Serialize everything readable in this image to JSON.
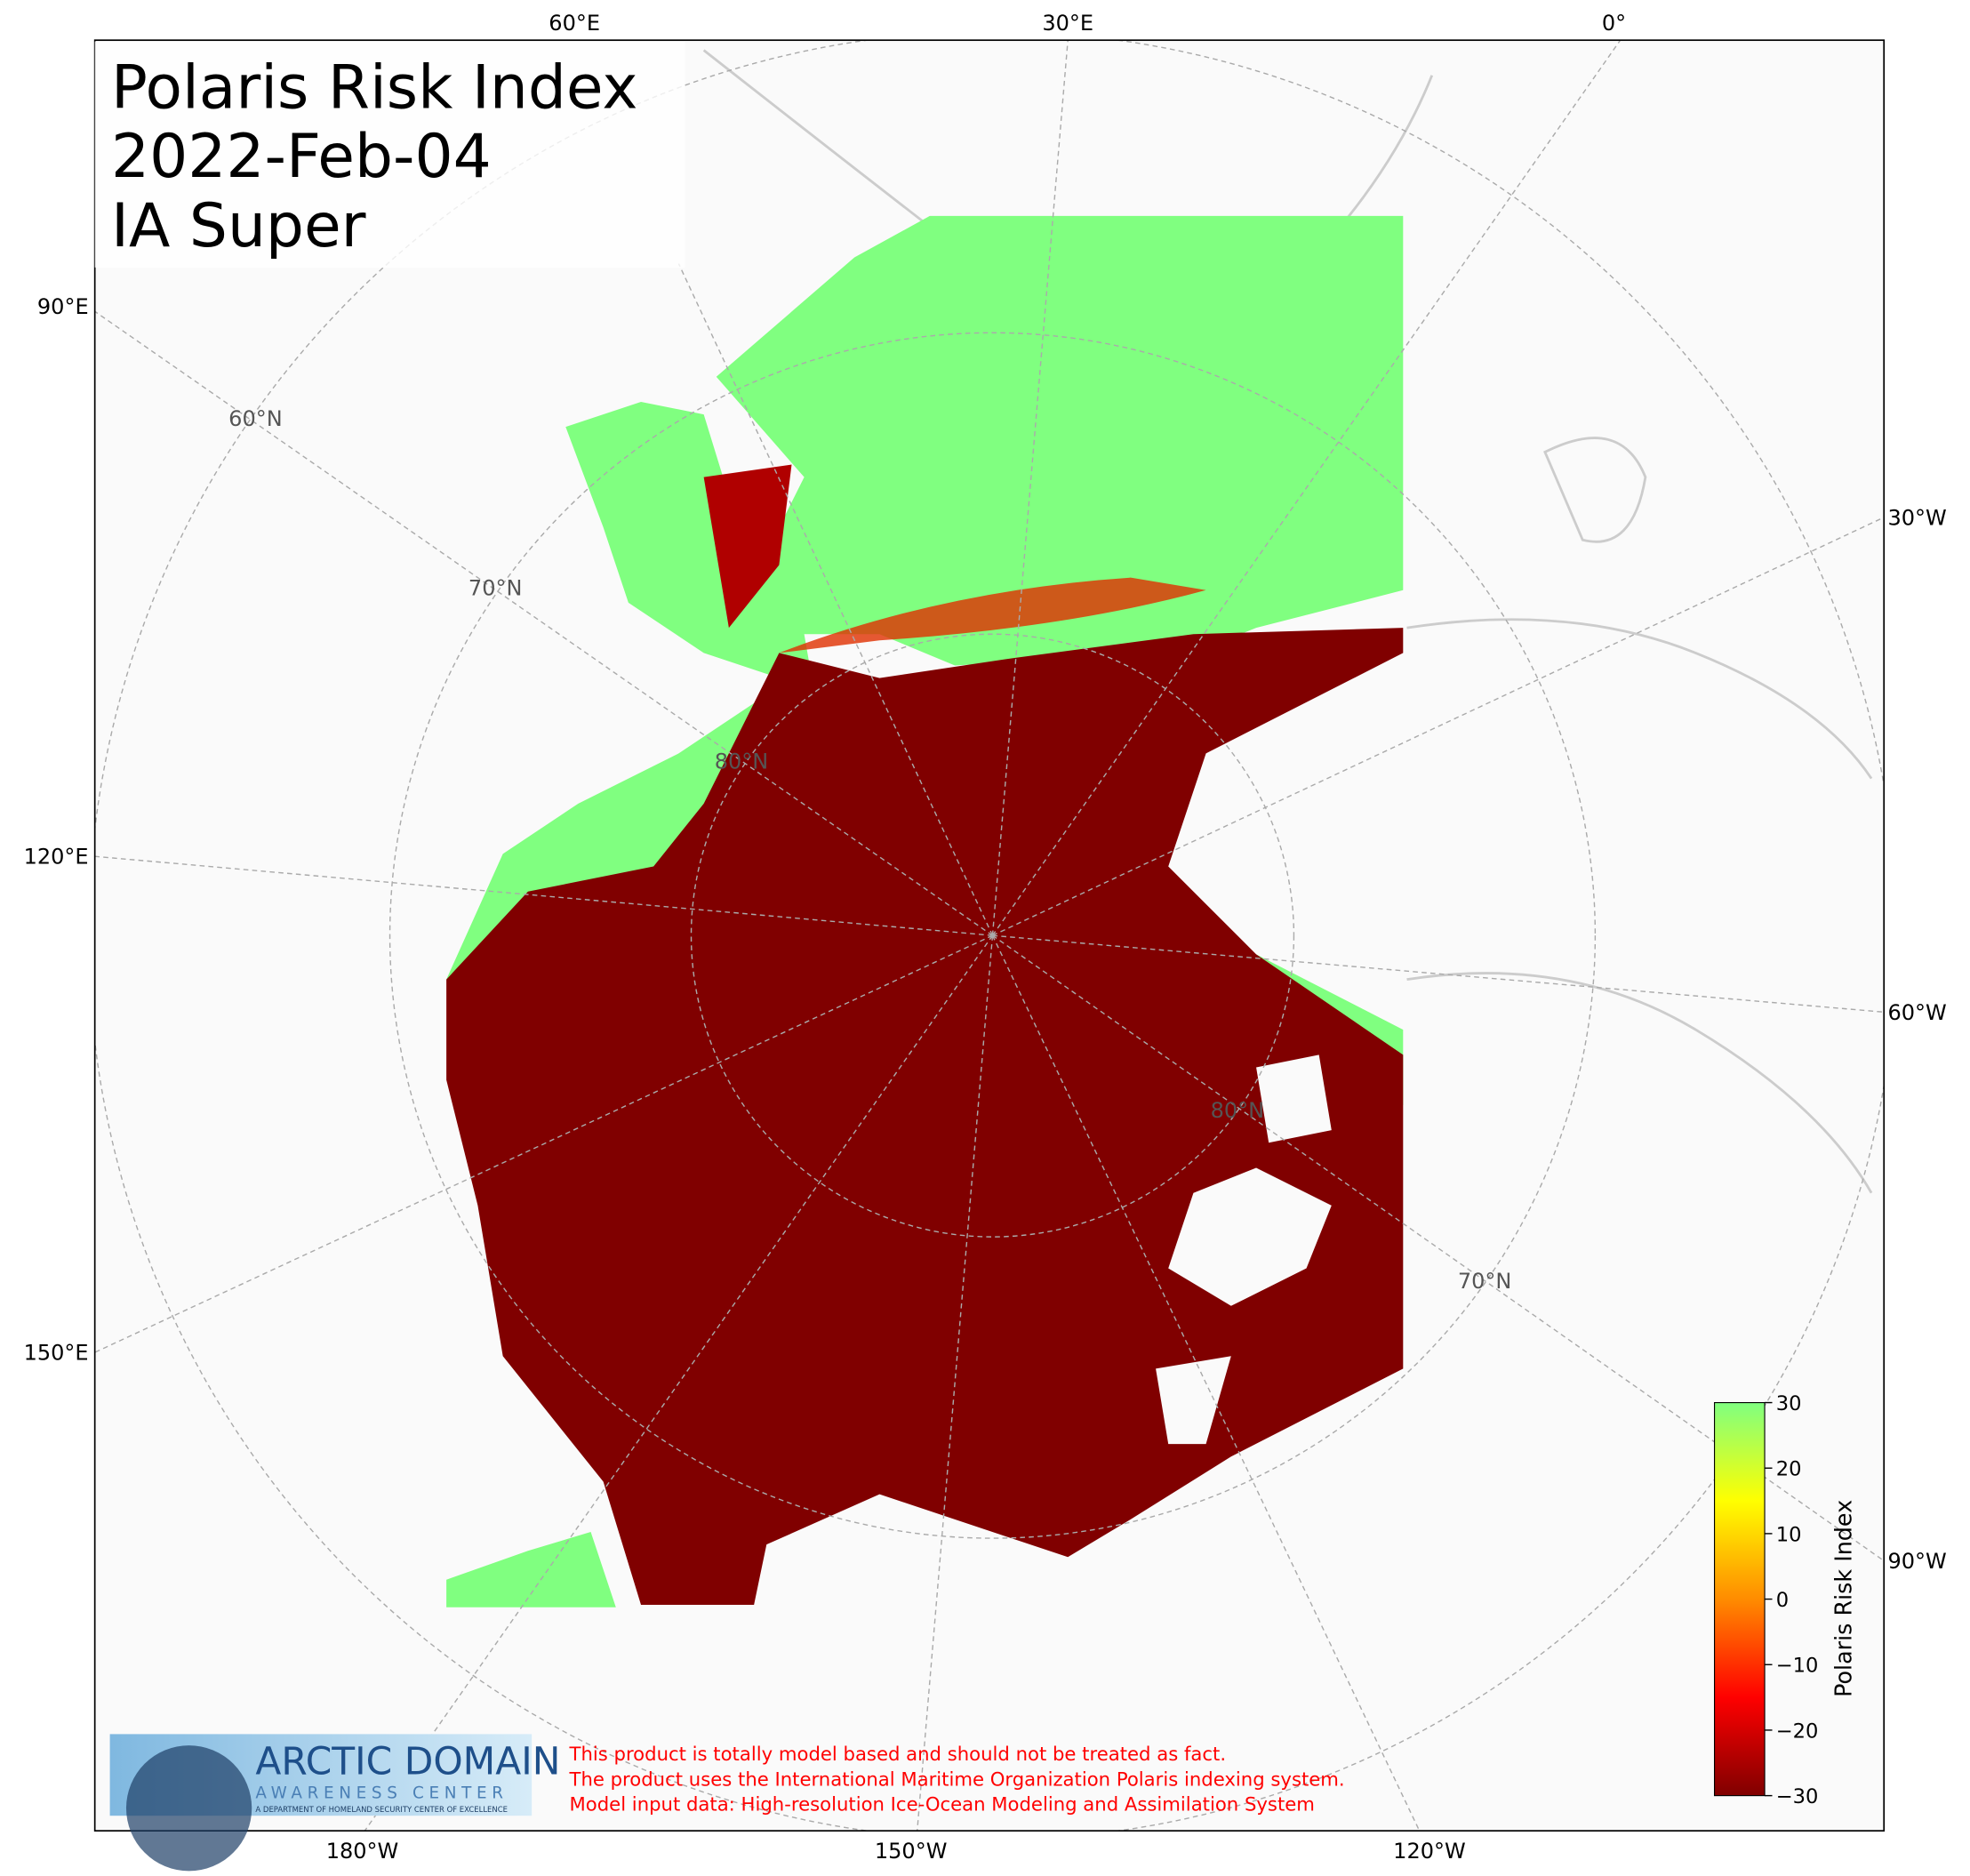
{
  "title_lines": [
    "Polaris Risk Index",
    "2022-Feb-04",
    "IA Super"
  ],
  "longitude_labels": [
    "60°E",
    "30°E",
    "0°",
    "90°E",
    "120°E",
    "150°E",
    "30°W",
    "60°W",
    "90°W",
    "180°W",
    "150°W",
    "120°W"
  ],
  "latitude_labels": [
    "60°N",
    "70°N",
    "80°N",
    "80°N",
    "70°N"
  ],
  "colorbar": {
    "label": "Polaris Risk Index",
    "clim": [
      -30,
      30
    ],
    "colors": [
      "#800000",
      "#ff0000",
      "#ff8c00",
      "#ffff00",
      "#80ff80"
    ],
    "ticks": [
      {
        "value": -30,
        "label": "−30"
      },
      {
        "value": -20,
        "label": "−20"
      },
      {
        "value": -10,
        "label": "−10"
      },
      0,
      10,
      20,
      30
    ]
  },
  "disclaimer": [
    "This product is totally model based and should not be treated as fact.",
    "The product uses the International Maritime Organization Polaris indexing system.",
    "Model input data: High-resolution Ice-Ocean Modeling and Assimilation System"
  ],
  "logo": {
    "name": "ARCTIC DOMAIN",
    "subtitle": "AWARENESS CENTER",
    "tagline": "A DEPARTMENT OF HOMELAND SECURITY CENTER OF EXCELLENCE"
  }
}
